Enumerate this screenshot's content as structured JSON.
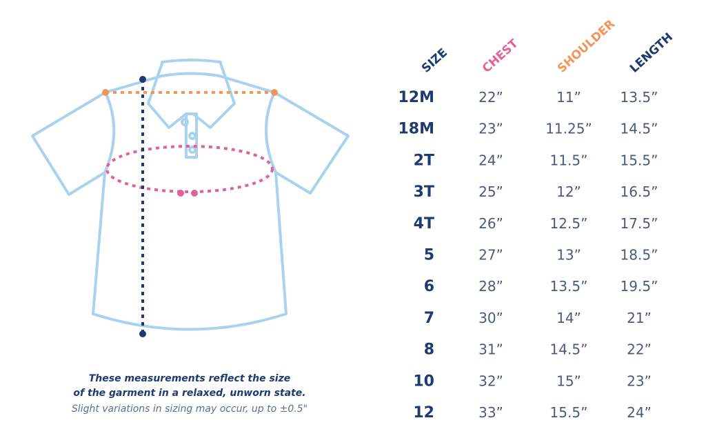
{
  "table": {
    "headers": [
      "SIZE",
      "CHEST",
      "SHOULDER",
      "LENGTH"
    ],
    "rows": [
      [
        "12M",
        "22”",
        "11”",
        "13.5”"
      ],
      [
        "18M",
        "23”",
        "11.25”",
        "14.5”"
      ],
      [
        "2T",
        "24”",
        "11.5”",
        "15.5”"
      ],
      [
        "3T",
        "25”",
        "12”",
        "16.5”"
      ],
      [
        "4T",
        "26”",
        "12.5”",
        "17.5”"
      ],
      [
        "5",
        "27”",
        "13”",
        "18.5”"
      ],
      [
        "6",
        "28”",
        "13.5”",
        "19.5”"
      ],
      [
        "7",
        "30”",
        "14”",
        "21”"
      ],
      [
        "8",
        "31”",
        "14.5”",
        "22”"
      ],
      [
        "10",
        "32”",
        "15”",
        "23”"
      ],
      [
        "12",
        "33”",
        "15.5”",
        "24”"
      ]
    ]
  },
  "note": {
    "lines": [
      "These measurements reflect the size",
      "of the garment in a relaxed, unworn state."
    ],
    "disclaimer": "Slight variations in sizing may occur, up to ±0.5\""
  }
}
